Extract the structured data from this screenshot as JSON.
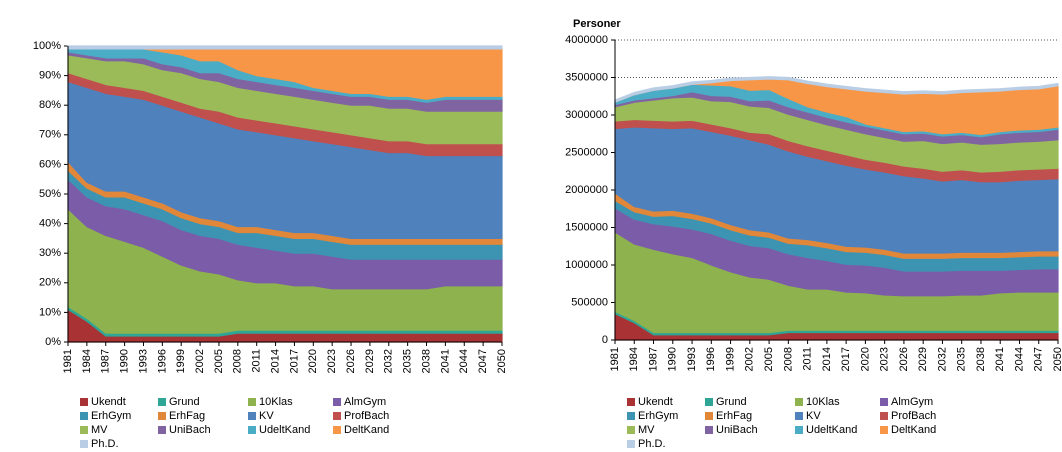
{
  "chart_data": [
    {
      "type": "stacked_area",
      "categories": [
        "1981",
        "1984",
        "1987",
        "1990",
        "1993",
        "1996",
        "1999",
        "2002",
        "2005",
        "2008",
        "2011",
        "2014",
        "2017",
        "2020",
        "2023",
        "2026",
        "2029",
        "2032",
        "2035",
        "2038",
        "2041",
        "2044",
        "2047",
        "2050"
      ],
      "ylim": [
        0,
        100
      ],
      "yticks": [
        {
          "value": 0,
          "label": "0%"
        },
        {
          "value": 10,
          "label": "10%"
        },
        {
          "value": 20,
          "label": "20%"
        },
        {
          "value": 30,
          "label": "30%"
        },
        {
          "value": 40,
          "label": "40%"
        },
        {
          "value": 50,
          "label": "50%"
        },
        {
          "value": 60,
          "label": "60%"
        },
        {
          "value": 70,
          "label": "70%"
        },
        {
          "value": 80,
          "label": "80%"
        },
        {
          "value": 90,
          "label": "90%"
        },
        {
          "value": 100,
          "label": "100%"
        }
      ],
      "grid": false,
      "legend": "bottom",
      "series": [
        {
          "name": "Ukendt",
          "color": "#a93234",
          "values": [
            11,
            7,
            2,
            2,
            2,
            2,
            2,
            2,
            2,
            3,
            3,
            3,
            3,
            3,
            3,
            3,
            3,
            3,
            3,
            3,
            3,
            3,
            3,
            3
          ]
        },
        {
          "name": "Grund",
          "color": "#2ea595",
          "values": [
            1,
            1,
            1,
            1,
            1,
            1,
            1,
            1,
            1,
            1,
            1,
            1,
            1,
            1,
            1,
            1,
            1,
            1,
            1,
            1,
            1,
            1,
            1,
            1
          ]
        },
        {
          "name": "10Klas",
          "color": "#8db24e",
          "values": [
            33,
            31,
            33,
            31,
            29,
            26,
            23,
            21,
            20,
            17,
            16,
            16,
            15,
            15,
            14,
            14,
            14,
            14,
            14,
            14,
            15,
            15,
            15,
            15
          ]
        },
        {
          "name": "AlmGym",
          "color": "#7b5ca8",
          "values": [
            10,
            10,
            10,
            11,
            11,
            12,
            12,
            12,
            12,
            12,
            12,
            11,
            11,
            11,
            11,
            10,
            10,
            10,
            10,
            10,
            9,
            9,
            9,
            9
          ]
        },
        {
          "name": "ErhGym",
          "color": "#3d94b2",
          "values": [
            3,
            3,
            3,
            4,
            4,
            4,
            4,
            4,
            4,
            4,
            5,
            5,
            5,
            5,
            5,
            5,
            5,
            5,
            5,
            5,
            5,
            5,
            5,
            5
          ]
        },
        {
          "name": "ErhFag",
          "color": "#e0873a",
          "values": [
            3,
            2,
            2,
            2,
            2,
            2,
            2,
            2,
            2,
            2,
            2,
            2,
            2,
            2,
            2,
            2,
            2,
            2,
            2,
            2,
            2,
            2,
            2,
            2
          ]
        },
        {
          "name": "KV",
          "color": "#4f81bd",
          "values": [
            27,
            32,
            33,
            32,
            33,
            33,
            34,
            34,
            33,
            33,
            32,
            32,
            32,
            31,
            31,
            31,
            30,
            29,
            29,
            28,
            28,
            28,
            28,
            28
          ]
        },
        {
          "name": "ProfBach",
          "color": "#c0504d",
          "values": [
            3,
            3,
            3,
            3,
            3,
            3,
            3,
            3,
            4,
            4,
            4,
            4,
            4,
            4,
            4,
            4,
            4,
            4,
            4,
            4,
            4,
            4,
            4,
            4
          ]
        },
        {
          "name": "MV",
          "color": "#9bbb59",
          "values": [
            6,
            7,
            8,
            9,
            9,
            9,
            10,
            10,
            10,
            10,
            10,
            10,
            10,
            10,
            10,
            10,
            11,
            11,
            11,
            11,
            11,
            11,
            11,
            11
          ]
        },
        {
          "name": "UniBach",
          "color": "#8064a2",
          "values": [
            1,
            1,
            1,
            1,
            2,
            2,
            2,
            2,
            3,
            3,
            3,
            3,
            3,
            3,
            3,
            3,
            3,
            3,
            3,
            3,
            4,
            4,
            4,
            4
          ]
        },
        {
          "name": "UdeltKand",
          "color": "#4bacc6",
          "values": [
            1,
            2,
            3,
            3,
            3,
            4,
            4,
            4,
            4,
            3,
            2,
            2,
            2,
            1,
            1,
            1,
            1,
            1,
            1,
            1,
            1,
            1,
            1,
            1
          ]
        },
        {
          "name": "DeltKand",
          "color": "#f79646",
          "values": [
            0,
            0,
            0,
            0,
            0,
            1,
            2,
            4,
            4,
            7,
            9,
            10,
            11,
            13,
            14,
            15,
            15,
            16,
            16,
            17,
            16,
            16,
            16,
            16
          ]
        },
        {
          "name": "Ph.D.",
          "color": "#b9cde5",
          "values": [
            1,
            1,
            1,
            1,
            1,
            1,
            1,
            1,
            1,
            1,
            1,
            1,
            1,
            1,
            1,
            1,
            1,
            1,
            1,
            1,
            1,
            1,
            1,
            1
          ]
        }
      ]
    },
    {
      "type": "stacked_area",
      "y_label": "Personer",
      "categories": [
        "1981",
        "1984",
        "1987",
        "1990",
        "1993",
        "1996",
        "1999",
        "2002",
        "2005",
        "2008",
        "2011",
        "2014",
        "2017",
        "2020",
        "2023",
        "2026",
        "2029",
        "2032",
        "2035",
        "2038",
        "2041",
        "2044",
        "2047",
        "2050"
      ],
      "ylim": [
        0,
        4000000
      ],
      "yticks": [
        0,
        500000,
        1000000,
        1500000,
        2000000,
        2500000,
        3000000,
        3500000,
        4000000
      ],
      "grid": true,
      "legend": "bottom",
      "series": [
        {
          "name": "Ukendt",
          "color": "#a93234",
          "values": [
            350000,
            230000,
            70000,
            70000,
            70000,
            70000,
            70000,
            70000,
            70000,
            100000,
            100000,
            100000,
            100000,
            100000,
            100000,
            100000,
            100000,
            100000,
            100000,
            100000,
            100000,
            100000,
            100000,
            100000
          ]
        },
        {
          "name": "Grund",
          "color": "#2ea595",
          "values": [
            30000,
            30000,
            30000,
            30000,
            30000,
            30000,
            30000,
            30000,
            30000,
            30000,
            30000,
            30000,
            30000,
            30000,
            30000,
            30000,
            30000,
            30000,
            30000,
            30000,
            30000,
            30000,
            30000,
            30000
          ]
        },
        {
          "name": "10Klas",
          "color": "#8db24e",
          "values": [
            1060000,
            1020000,
            1110000,
            1050000,
            1000000,
            900000,
            810000,
            740000,
            710000,
            600000,
            550000,
            550000,
            510000,
            500000,
            470000,
            460000,
            460000,
            460000,
            470000,
            470000,
            500000,
            510000,
            510000,
            510000
          ]
        },
        {
          "name": "AlmGym",
          "color": "#7b5ca8",
          "values": [
            320000,
            330000,
            340000,
            370000,
            380000,
            420000,
            420000,
            420000,
            420000,
            420000,
            420000,
            380000,
            370000,
            370000,
            370000,
            330000,
            330000,
            330000,
            330000,
            330000,
            300000,
            300000,
            310000,
            310000
          ]
        },
        {
          "name": "ErhGym",
          "color": "#3d94b2",
          "values": [
            100000,
            100000,
            100000,
            140000,
            140000,
            140000,
            140000,
            140000,
            140000,
            140000,
            170000,
            170000,
            170000,
            170000,
            170000,
            170000,
            170000,
            170000,
            170000,
            170000,
            170000,
            170000,
            170000,
            170000
          ]
        },
        {
          "name": "ErhFag",
          "color": "#e0873a",
          "values": [
            100000,
            70000,
            70000,
            70000,
            70000,
            70000,
            70000,
            70000,
            70000,
            70000,
            70000,
            70000,
            70000,
            70000,
            70000,
            70000,
            70000,
            70000,
            70000,
            70000,
            70000,
            70000,
            70000,
            70000
          ]
        },
        {
          "name": "KV",
          "color": "#4f81bd",
          "values": [
            860000,
            1060000,
            1110000,
            1090000,
            1140000,
            1150000,
            1190000,
            1200000,
            1170000,
            1160000,
            1110000,
            1090000,
            1080000,
            1040000,
            1030000,
            1030000,
            1000000,
            960000,
            970000,
            940000,
            940000,
            950000,
            950000,
            960000
          ]
        },
        {
          "name": "ProfBach",
          "color": "#c0504d",
          "values": [
            100000,
            100000,
            100000,
            100000,
            100000,
            100000,
            100000,
            100000,
            140000,
            140000,
            140000,
            140000,
            140000,
            130000,
            130000,
            130000,
            130000,
            130000,
            130000,
            130000,
            140000,
            140000,
            140000,
            140000
          ]
        },
        {
          "name": "MV",
          "color": "#9bbb59",
          "values": [
            190000,
            230000,
            270000,
            310000,
            310000,
            310000,
            350000,
            350000,
            350000,
            350000,
            350000,
            340000,
            340000,
            340000,
            330000,
            330000,
            370000,
            370000,
            370000,
            370000,
            370000,
            370000,
            370000,
            380000
          ]
        },
        {
          "name": "UniBach",
          "color": "#8064a2",
          "values": [
            30000,
            30000,
            30000,
            30000,
            70000,
            70000,
            70000,
            70000,
            100000,
            100000,
            100000,
            100000,
            100000,
            100000,
            100000,
            100000,
            100000,
            100000,
            100000,
            100000,
            130000,
            130000,
            130000,
            140000
          ]
        },
        {
          "name": "UdeltKand",
          "color": "#4bacc6",
          "values": [
            30000,
            70000,
            100000,
            100000,
            100000,
            140000,
            140000,
            140000,
            140000,
            110000,
            70000,
            70000,
            70000,
            30000,
            30000,
            30000,
            30000,
            30000,
            30000,
            30000,
            30000,
            30000,
            30000,
            30000
          ]
        },
        {
          "name": "DeltKand",
          "color": "#f79646",
          "values": [
            0,
            0,
            0,
            0,
            0,
            30000,
            70000,
            140000,
            140000,
            250000,
            310000,
            340000,
            370000,
            440000,
            470000,
            500000,
            500000,
            530000,
            530000,
            570000,
            540000,
            540000,
            540000,
            550000
          ]
        },
        {
          "name": "Ph.D.",
          "color": "#b9cde5",
          "values": [
            30000,
            30000,
            30000,
            30000,
            30000,
            30000,
            30000,
            30000,
            30000,
            30000,
            30000,
            30000,
            30000,
            30000,
            30000,
            30000,
            30000,
            30000,
            30000,
            30000,
            30000,
            30000,
            30000,
            30000
          ]
        }
      ]
    }
  ]
}
